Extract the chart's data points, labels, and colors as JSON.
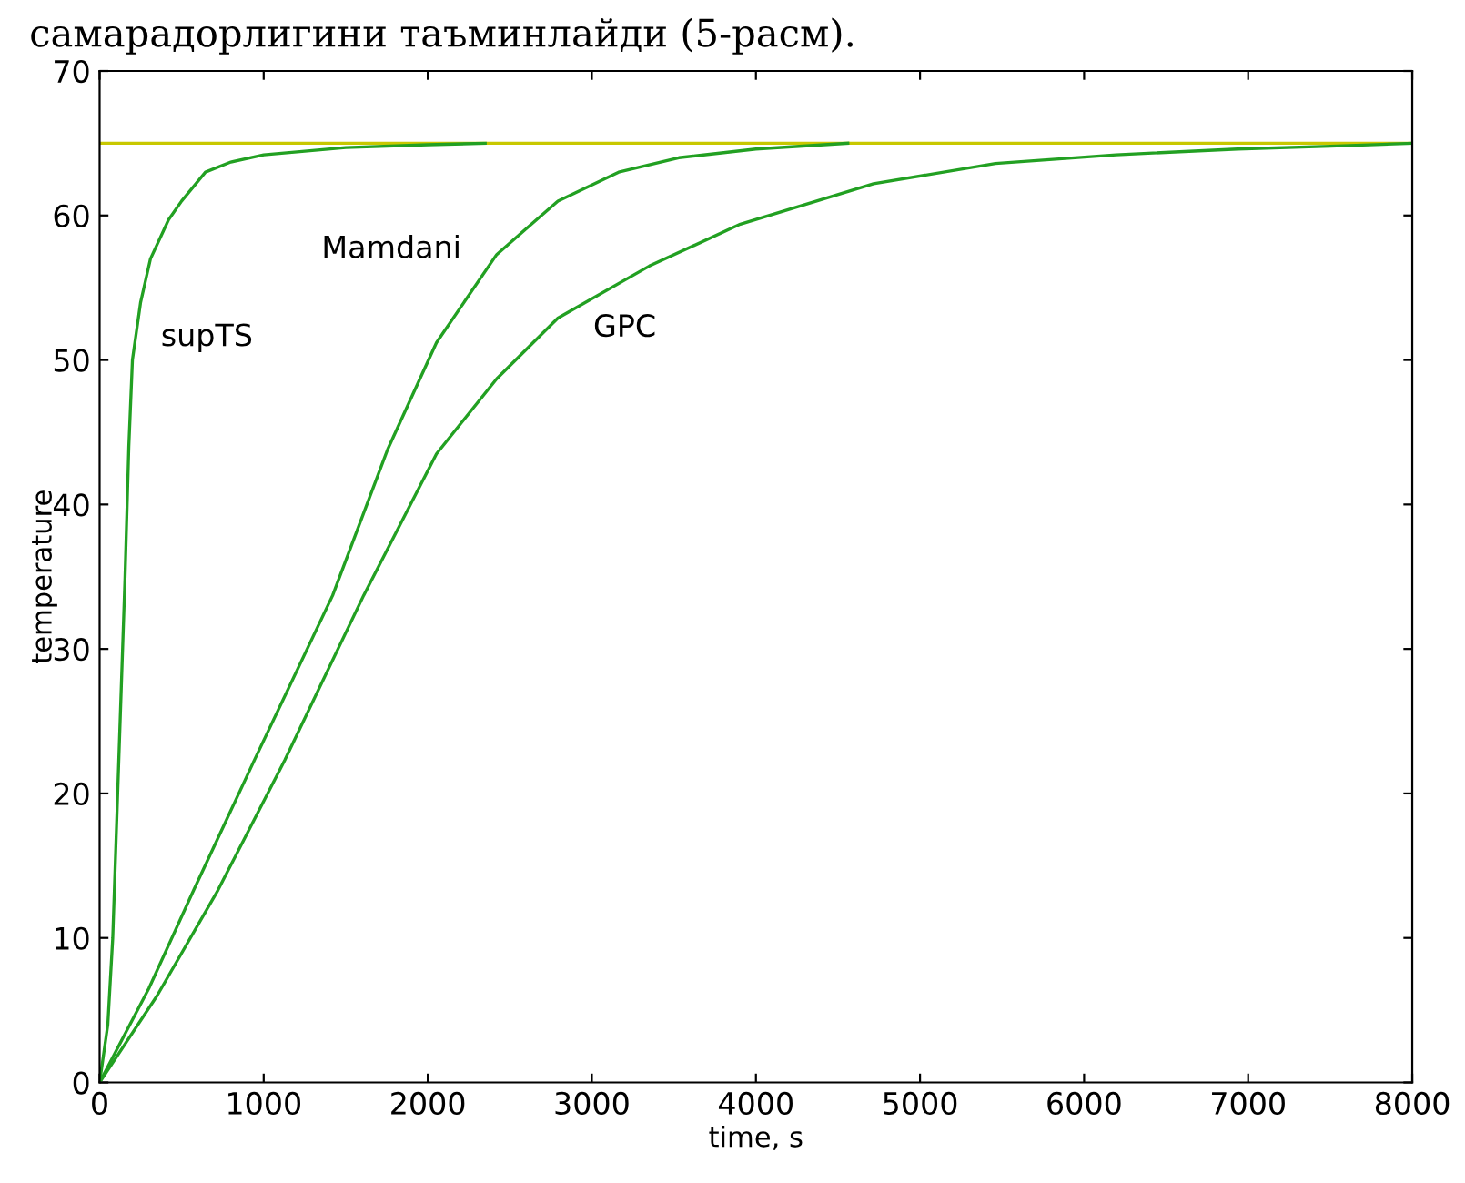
{
  "chart_data": {
    "type": "line",
    "xlabel": "time, s",
    "ylabel": "temperature",
    "xlim": [
      0,
      8000
    ],
    "ylim": [
      0,
      70
    ],
    "xticks": [
      0,
      1000,
      2000,
      3000,
      4000,
      5000,
      6000,
      7000,
      8000
    ],
    "yticks": [
      0,
      10,
      20,
      30,
      40,
      50,
      60,
      70
    ],
    "grid": false,
    "series": [
      {
        "name": "supTS",
        "color": "#22a022",
        "x": [
          0,
          50,
          80,
          110,
          155,
          178,
          200,
          250,
          310,
          420,
          500,
          645,
          800,
          1000,
          1500,
          2000,
          2350
        ],
        "values": [
          0,
          4,
          10,
          20,
          35,
          44,
          50,
          54,
          57,
          59.7,
          61,
          63,
          63.7,
          64.2,
          64.7,
          64.9,
          65
        ]
      },
      {
        "name": "Mamdani",
        "color": "#22a022",
        "x": [
          0,
          300,
          573,
          943,
          1420,
          1755,
          2053,
          2420,
          2793,
          3163,
          3530,
          4000,
          4560
        ],
        "values": [
          0,
          6.5,
          13.3,
          22.3,
          33.7,
          43.8,
          51.2,
          57.3,
          61,
          63,
          64,
          64.6,
          65
        ]
      },
      {
        "name": "GPC",
        "color": "#22a022",
        "x": [
          0,
          350,
          721,
          1128,
          1609,
          2053,
          2420,
          2793,
          3350,
          3905,
          4717,
          5460,
          6195,
          6935,
          7500,
          8000
        ],
        "values": [
          0,
          6,
          13.3,
          22.3,
          33.7,
          43.5,
          48.7,
          52.9,
          56.5,
          59.4,
          62.2,
          63.6,
          64.2,
          64.6,
          64.8,
          65
        ]
      }
    ],
    "ref_lines": [
      {
        "axis": "y",
        "value": 65,
        "color": "#c8c800"
      }
    ],
    "annotations": [
      "самарадорлигини таъминлайди (5-расм)."
    ]
  }
}
